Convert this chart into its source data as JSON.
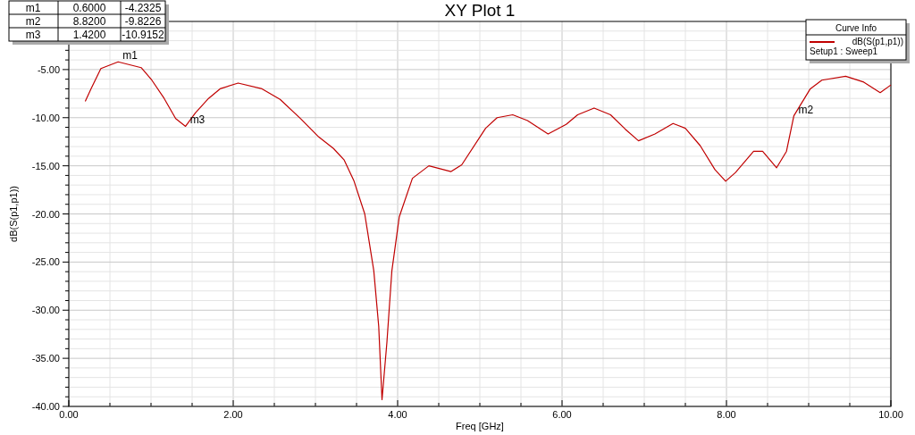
{
  "chart_data": {
    "type": "line",
    "title": "XY Plot 1",
    "xlabel": "Freq [GHz]",
    "ylabel": "dB(S(p1,p1))",
    "legend_title": "Curve Info",
    "legend": "top right",
    "grid": true,
    "marker": "none",
    "line_style": "solid",
    "xlim": [
      0,
      10
    ],
    "ylim": [
      -40,
      0
    ],
    "xticks": [
      {
        "value": 0,
        "label": "0.00"
      },
      {
        "value": 0.5,
        "label": null
      },
      {
        "value": 1,
        "label": null
      },
      {
        "value": 1.5,
        "label": null
      },
      {
        "value": 2,
        "label": "2.00"
      },
      {
        "value": 2.5,
        "label": null
      },
      {
        "value": 3,
        "label": null
      },
      {
        "value": 3.5,
        "label": null
      },
      {
        "value": 4,
        "label": "4.00"
      },
      {
        "value": 4.5,
        "label": null
      },
      {
        "value": 5,
        "label": null
      },
      {
        "value": 5.5,
        "label": null
      },
      {
        "value": 6,
        "label": "6.00"
      },
      {
        "value": 6.5,
        "label": null
      },
      {
        "value": 7,
        "label": null
      },
      {
        "value": 7.5,
        "label": null
      },
      {
        "value": 8,
        "label": "8.00"
      },
      {
        "value": 8.5,
        "label": null
      },
      {
        "value": 9,
        "label": null
      },
      {
        "value": 9.5,
        "label": null
      },
      {
        "value": 10,
        "label": "10.00"
      }
    ],
    "yticks": [
      {
        "value": -40,
        "label": "-40.00"
      },
      {
        "value": -39,
        "label": null
      },
      {
        "value": -38,
        "label": null
      },
      {
        "value": -37,
        "label": null
      },
      {
        "value": -36,
        "label": null
      },
      {
        "value": -35,
        "label": "-35.00"
      },
      {
        "value": -34,
        "label": null
      },
      {
        "value": -33,
        "label": null
      },
      {
        "value": -32,
        "label": null
      },
      {
        "value": -31,
        "label": null
      },
      {
        "value": -30,
        "label": "-30.00"
      },
      {
        "value": -29,
        "label": null
      },
      {
        "value": -28,
        "label": null
      },
      {
        "value": -27,
        "label": null
      },
      {
        "value": -26,
        "label": null
      },
      {
        "value": -25,
        "label": "-25.00"
      },
      {
        "value": -24,
        "label": null
      },
      {
        "value": -23,
        "label": null
      },
      {
        "value": -22,
        "label": null
      },
      {
        "value": -21,
        "label": null
      },
      {
        "value": -20,
        "label": "-20.00"
      },
      {
        "value": -19,
        "label": null
      },
      {
        "value": -18,
        "label": null
      },
      {
        "value": -17,
        "label": null
      },
      {
        "value": -16,
        "label": null
      },
      {
        "value": -15,
        "label": "-15.00"
      },
      {
        "value": -14,
        "label": null
      },
      {
        "value": -13,
        "label": null
      },
      {
        "value": -12,
        "label": null
      },
      {
        "value": -11,
        "label": null
      },
      {
        "value": -10,
        "label": "-10.00"
      },
      {
        "value": -9,
        "label": null
      },
      {
        "value": -8,
        "label": null
      },
      {
        "value": -7,
        "label": null
      },
      {
        "value": -6,
        "label": null
      },
      {
        "value": -5,
        "label": "-5.00"
      },
      {
        "value": -4,
        "label": null
      },
      {
        "value": -3,
        "label": null
      },
      {
        "value": -2,
        "label": null
      },
      {
        "value": -1,
        "label": null
      }
    ],
    "series": [
      {
        "name": "dB(S(p1,p1))",
        "color": "#c00000",
        "x": [
          0.2,
          0.27,
          0.39,
          0.6,
          0.88,
          1.01,
          1.16,
          1.3,
          1.42,
          1.54,
          1.7,
          1.84,
          2.06,
          2.35,
          2.57,
          2.82,
          3.04,
          3.22,
          3.35,
          3.47,
          3.6,
          3.71,
          3.77,
          3.81,
          3.87,
          3.93,
          4.02,
          4.18,
          4.38,
          4.65,
          4.78,
          5.07,
          5.21,
          5.4,
          5.58,
          5.83,
          6.05,
          6.19,
          6.39,
          6.59,
          6.77,
          6.93,
          7.13,
          7.35,
          7.5,
          7.68,
          7.86,
          7.99,
          8.11,
          8.33,
          8.44,
          8.61,
          8.73,
          8.82,
          9.02,
          9.16,
          9.45,
          9.67,
          9.87,
          10
        ],
        "values": [
          -8.3,
          -7.0,
          -4.9,
          -4.2,
          -4.8,
          -6.1,
          -8.0,
          -10.1,
          -10.9,
          -9.5,
          -8.0,
          -7.0,
          -6.4,
          -7.0,
          -8.1,
          -10.1,
          -12.0,
          -13.2,
          -14.4,
          -16.6,
          -20.0,
          -25.9,
          -31.7,
          -39.3,
          -33.3,
          -25.9,
          -20.3,
          -16.3,
          -15.0,
          -15.6,
          -14.9,
          -11.1,
          -10.0,
          -9.7,
          -10.3,
          -11.7,
          -10.7,
          -9.7,
          -9.0,
          -9.7,
          -11.2,
          -12.4,
          -11.7,
          -10.6,
          -11.1,
          -12.9,
          -15.4,
          -16.6,
          -15.7,
          -13.5,
          -13.5,
          -15.2,
          -13.5,
          -9.8,
          -7.0,
          -6.1,
          -5.7,
          -6.3,
          -7.4,
          -6.6
        ]
      }
    ],
    "annotations": [
      {
        "text": "m1",
        "x": 0.6,
        "y": -4.2
      },
      {
        "text": "m2",
        "x": 8.82,
        "y": -9.8
      },
      {
        "text": "m3",
        "x": 1.42,
        "y": -10.9
      },
      "m1",
      "0.6000",
      "-4.2325",
      "m2",
      "8.8200",
      "-9.8226",
      "m3",
      "1.4200",
      "-10.9152",
      "Setup1 : Sweep1"
    ]
  }
}
